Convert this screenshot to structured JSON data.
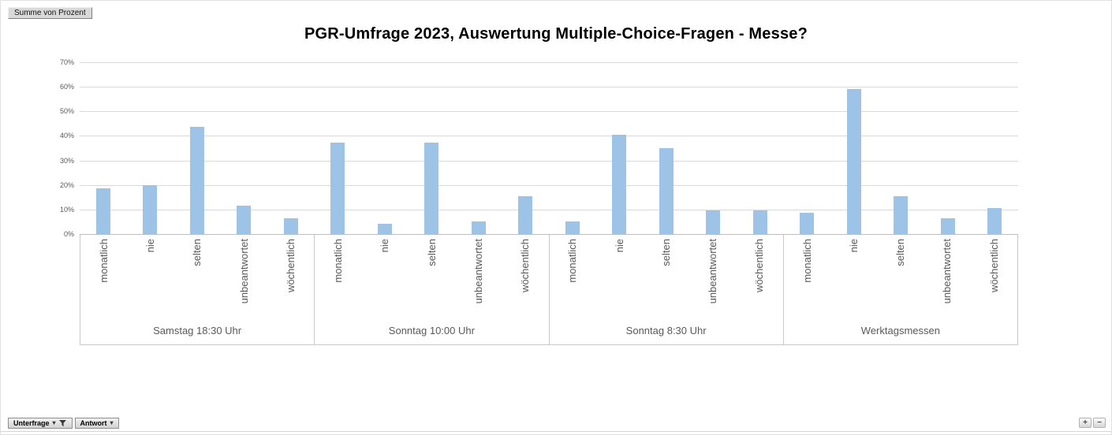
{
  "pivot": {
    "value_field_button": "Summe von Prozent",
    "axis_field_buttons": [
      {
        "label": "Unterfrage",
        "icon": "filter-funnel-icon"
      },
      {
        "label": "Antwort",
        "icon": "dropdown-arrow-icon"
      }
    ],
    "expand_button": "+",
    "collapse_button": "−"
  },
  "chart_data": {
    "type": "bar",
    "title": "PGR-Umfrage 2023, Auswertung Multiple-Choice-Fragen - Messe?",
    "xlabel": "",
    "ylabel": "",
    "ylim": [
      0,
      70
    ],
    "y_tick_labels": [
      "0%",
      "10%",
      "20%",
      "30%",
      "40%",
      "50%",
      "60%",
      "70%"
    ],
    "grid": true,
    "legend": "none",
    "bar_color": "#9dc3e6",
    "axis_text_color": "#595959",
    "gridline_color": "#d9d9d9",
    "categories": [
      "monatlich",
      "nie",
      "selten",
      "unbeantwortet",
      "wöchentlich"
    ],
    "groups": [
      {
        "label": "Samstag 18:30 Uhr",
        "values": [
          18.8,
          20.0,
          43.8,
          11.5,
          6.3
        ]
      },
      {
        "label": "Sonntag 10:00 Uhr",
        "values": [
          37.2,
          4.3,
          37.2,
          5.3,
          15.5
        ]
      },
      {
        "label": "Sonntag 8:30 Uhr",
        "values": [
          5.3,
          40.5,
          35.1,
          9.5,
          9.5
        ]
      },
      {
        "label": "Werktagsmessen",
        "values": [
          8.6,
          59.1,
          15.5,
          6.3,
          10.7
        ]
      }
    ]
  }
}
